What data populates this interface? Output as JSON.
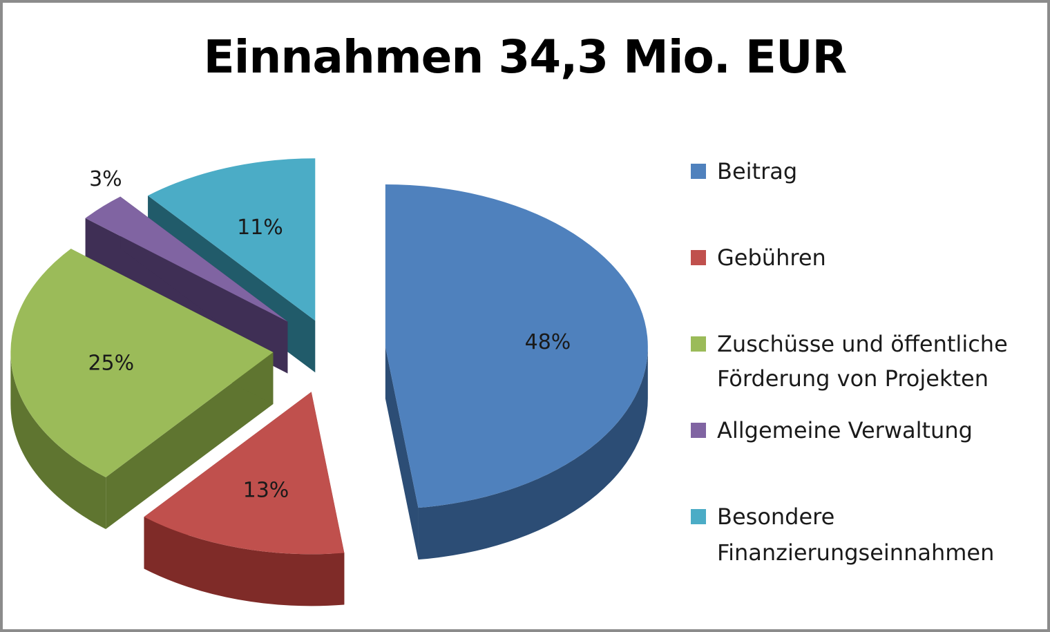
{
  "chart_data": {
    "type": "pie",
    "title": "Einnahmen 34,3 Mio. EUR",
    "legend_position": "right",
    "slices": [
      {
        "label": "Beitrag",
        "value": 48,
        "value_label": "48%",
        "color": "#4f81bd",
        "side_color": "#2c4d75",
        "legend_lines": [
          "Beitrag"
        ]
      },
      {
        "label": "Gebühren",
        "value": 13,
        "value_label": "13%",
        "color": "#c0504d",
        "side_color": "#7f2b28",
        "legend_lines": [
          "Gebühren"
        ]
      },
      {
        "label": "Zuschüsse und öffentliche Förderung von Projekten",
        "value": 25,
        "value_label": "25%",
        "color": "#9bbb59",
        "side_color": "#5f7530",
        "legend_lines": [
          "Zuschüsse und öffentliche",
          "Förderung von Projekten"
        ]
      },
      {
        "label": "Allgemeine Verwaltung",
        "value": 3,
        "value_label": "3%",
        "color": "#8064a2",
        "side_color": "#3f2f55",
        "legend_lines": [
          "Allgemeine Verwaltung"
        ]
      },
      {
        "label": "Besondere Finanzierungseinnahmen",
        "value": 11,
        "value_label": "11%",
        "color": "#4bacc6",
        "side_color": "#215b6a",
        "legend_lines": [
          "Besondere",
          "Finanzierungseinnahmen"
        ]
      }
    ]
  }
}
